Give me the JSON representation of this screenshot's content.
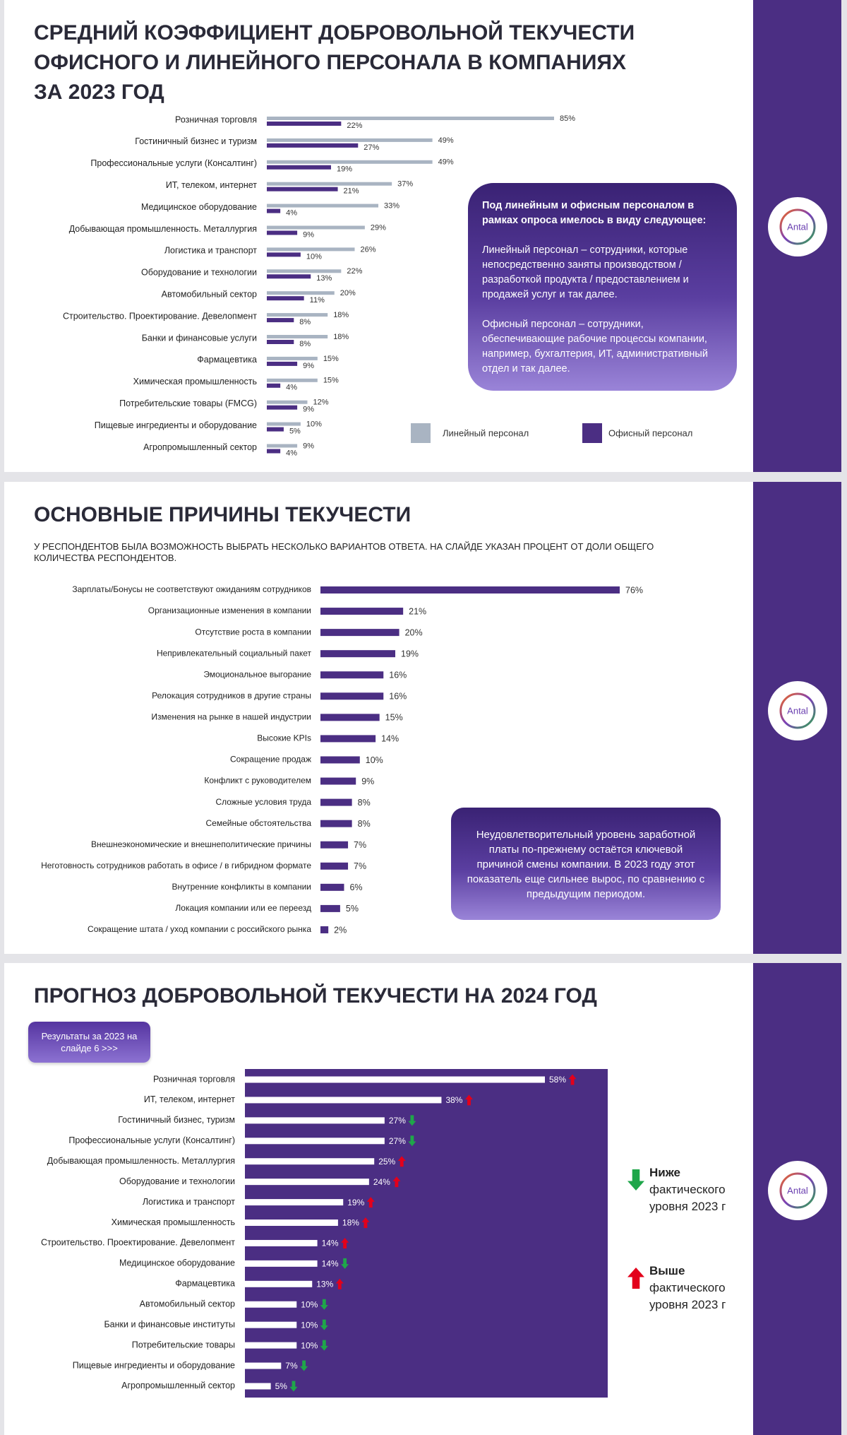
{
  "brand": "Antal",
  "chart_data": [
    {
      "type": "bar",
      "orientation": "horizontal",
      "title": "СРЕДНИЙ КОЭФФИЦИЕНТ ДОБРОВОЛЬНОЙ ТЕКУЧЕСТИ ОФИСНОГО И ЛИНЕЙНОГО ПЕРСОНАЛА В КОМПАНИЯХ ЗА 2023 ГОД",
      "categories": [
        "Розничная торговля",
        "Гостиничный бизнес и туризм",
        "Профессиональные услуги (Консалтинг)",
        "ИТ, телеком, интернет",
        "Медицинское оборудование",
        "Добывающая промышленность. Металлургия",
        "Логистика и транспорт",
        "Оборудование и технологии",
        "Автомобильный сектор",
        "Строительство. Проектирование. Девелопмент",
        "Банки и финансовые услуги",
        "Фармацевтика",
        "Химическая промышленность",
        "Потребительские товары (FMCG)",
        "Пищевые ингредиенты и оборудование",
        "Агропромышленный сектор"
      ],
      "series": [
        {
          "name": "Линейный персонал",
          "color": "#a9b4c2",
          "values": [
            85,
            49,
            49,
            37,
            33,
            29,
            26,
            22,
            20,
            18,
            18,
            15,
            15,
            12,
            10,
            9
          ],
          "value_labels": [
            "85%",
            "49%",
            "49%",
            "37%",
            "33%",
            "29%",
            "26%",
            "22%",
            "20%",
            "18%",
            "18%",
            "15%",
            "15%",
            "12%",
            "10%",
            "9%"
          ]
        },
        {
          "name": "Офисный персонал",
          "color": "#4b2e83",
          "values": [
            22,
            27,
            19,
            21,
            4,
            9,
            10,
            13,
            11,
            8,
            8,
            9,
            4,
            9,
            5,
            4
          ],
          "value_labels": [
            "22%",
            "27%",
            "19%",
            "21%",
            "4%",
            "9%",
            "10%",
            "13%",
            "11%",
            "8%",
            "8%",
            "9%",
            "4%",
            "9%",
            "5%",
            "4%"
          ]
        }
      ],
      "note": {
        "title": "Под линейным и офисным персоналом в рамках опроса имелось в виду следующее:",
        "paragraphs": [
          "Линейный персонал – сотрудники, которые непосредственно заняты производством / разработкой продукта / предоставлением и продажей услуг и так далее.",
          "Офисный персонал – сотрудники, обеспечивающие рабочие процессы компании, например, бухгалтерия, ИТ, административный отдел и так далее."
        ]
      }
    },
    {
      "type": "bar",
      "orientation": "horizontal",
      "title": "ОСНОВНЫЕ ПРИЧИНЫ ТЕКУЧЕСТИ",
      "subtitle": "У РЕСПОНДЕНТОВ БЫЛА ВОЗМОЖНОСТЬ ВЫБРАТЬ НЕСКОЛЬКО ВАРИАНТОВ ОТВЕТА. НА СЛАЙДЕ УКАЗАН ПРОЦЕНТ ОТ ДОЛИ ОБЩЕГО КОЛИЧЕСТВА РЕСПОНДЕНТОВ.",
      "categories": [
        "Зарплаты/Бонусы не соответствуют ожиданиям сотрудников",
        "Организационные изменения в компании",
        "Отсутствие роста в компании",
        "Непривлекательный социальный пакет",
        "Эмоциональное выгорание",
        "Релокация сотрудников в другие страны",
        "Изменения на рынке в нашей индустрии",
        "Высокие KPIs",
        "Сокращение продаж",
        "Конфликт с руководителем",
        "Сложные условия труда",
        "Семейные обстоятельства",
        "Внешнеэкономические и внешнеполитические причины",
        "Неготовность сотрудников работать в офисе / в гибридном формате",
        "Внутренние конфликты в компании",
        "Локация компании или ее переезд",
        "Сокращение штата / уход компании с российского рынка"
      ],
      "values": [
        76,
        21,
        20,
        19,
        16,
        16,
        15,
        14,
        10,
        9,
        8,
        8,
        7,
        7,
        6,
        5,
        2
      ],
      "value_labels": [
        "76%",
        "21%",
        "20%",
        "19%",
        "16%",
        "16%",
        "15%",
        "14%",
        "10%",
        "9%",
        "8%",
        "8%",
        "7%",
        "7%",
        "6%",
        "5%",
        "2%"
      ],
      "color": "#4b2e83",
      "note": "Неудовлетворительный уровень заработной платы по-прежнему остаётся ключевой причиной смены компании. В 2023 году этот показатель еще сильнее вырос, по сравнению с предыдущим периодом."
    },
    {
      "type": "bar",
      "orientation": "horizontal",
      "title": "ПРОГНОЗ ДОБРОВОЛЬНОЙ ТЕКУЧЕСТИ НА 2024 ГОД",
      "button": "Результаты за 2023 на слайде 6 >>>",
      "categories": [
        "Розничная торговля",
        "ИТ, телеком, интернет",
        "Гостиничный бизнес, туризм",
        "Профессиональные услуги (Консалтинг)",
        "Добывающая промышленность. Металлургия",
        "Оборудование и технологии",
        "Логистика и транспорт",
        "Химическая промышленность",
        "Строительство. Проектирование. Девелопмент",
        "Медицинское оборудование",
        "Фармацевтика",
        "Автомобильный сектор",
        "Банки и финансовые институты",
        "Потребительские товары",
        "Пищевые ингредиенты и оборудование",
        "Агропромышленный сектор"
      ],
      "values": [
        58,
        38,
        27,
        27,
        25,
        24,
        19,
        18,
        14,
        14,
        13,
        10,
        10,
        10,
        7,
        5
      ],
      "value_labels": [
        "58%",
        "38%",
        "27%",
        "27%",
        "25%",
        "24%",
        "19%",
        "18%",
        "14%",
        "14%",
        "13%",
        "10%",
        "10%",
        "10%",
        "7%",
        "5%"
      ],
      "color": "#ffffff",
      "background": "#4b2e83",
      "trend": [
        "up",
        "up",
        "down",
        "down",
        "up",
        "up",
        "up",
        "up",
        "up",
        "down",
        "up",
        "down",
        "down",
        "down",
        "down",
        "down"
      ],
      "trend_colors": {
        "up": "#e3001b",
        "down": "#1fa64a"
      },
      "trend_legend": [
        {
          "direction": "down",
          "title": "Ниже",
          "text": "фактического уровня 2023 г"
        },
        {
          "direction": "up",
          "title": "Выше",
          "text": "фактического уровня 2023 г"
        }
      ]
    }
  ]
}
